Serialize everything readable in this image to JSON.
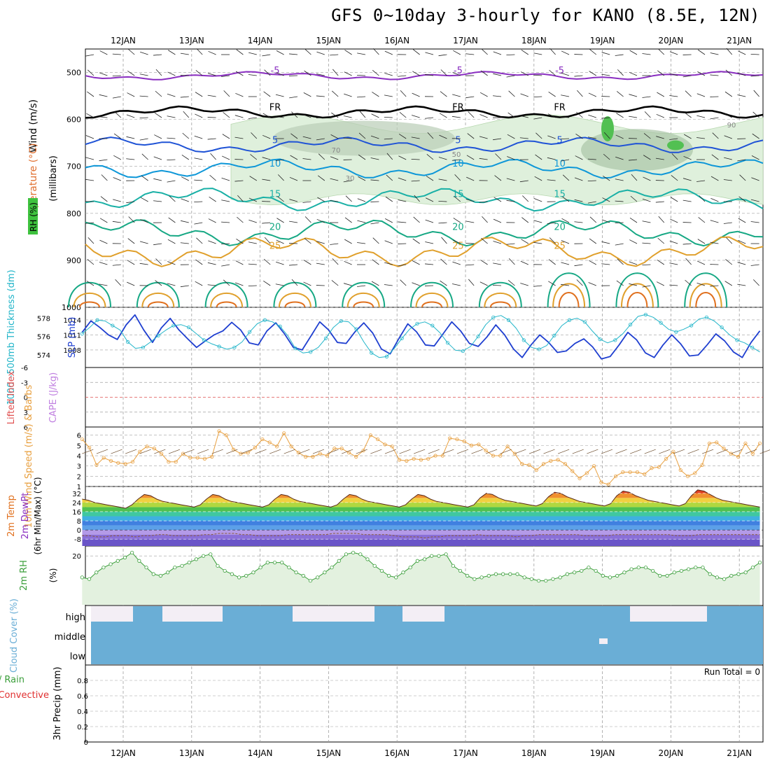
{
  "title": "GFS 0~10day 3-hourly for KANO (8.5E, 12N)",
  "dates": [
    "12JAN",
    "13JAN",
    "14JAN",
    "15JAN",
    "16JAN",
    "17JAN",
    "18JAN",
    "19JAN",
    "20JAN",
    "21JAN"
  ],
  "colors": {
    "grid": "#a0a0a0",
    "temp_minus5": "#8a2fc1",
    "temp_fr": "#000000",
    "temp_5": "#1f53d6",
    "temp_10": "#0e97d8",
    "temp_15": "#19b0a6",
    "temp_20": "#16a884",
    "temp_25": "#e0a02c",
    "temp_30": "#e0701e",
    "temp_35": "#d0136e",
    "rh_fill": "#dff0dc",
    "thickness": "#22b5c9",
    "slp": "#1f3fd0",
    "wind10m": "#e8a040",
    "rh2m": "#3a9e3a",
    "cloud": "#6aaed6",
    "lifted_zero": "#e05050"
  },
  "chart_data": [
    {
      "type": "line",
      "panel": "upper-air cross section",
      "labels_left": [
        "Temperature (°C)",
        "Wind (m/s)",
        "RH (%)"
      ],
      "ylabel": "(millibars)",
      "y_ticks": [
        500,
        600,
        700,
        800,
        900,
        1000
      ],
      "ylim": [
        450,
        1000
      ],
      "x_start": "11.6JAN",
      "x_end": "21.3JAN",
      "isotherm_labels": [
        "-5",
        "FR",
        "5",
        "10",
        "15",
        "20",
        "25"
      ],
      "rh_labels": [
        "30",
        "50",
        "70",
        "90"
      ],
      "series": [
        {
          "name": "-5",
          "pressure_mb_mean": 507
        },
        {
          "name": "FR",
          "pressure_mb_mean": 585
        },
        {
          "name": "5",
          "pressure_mb_mean": 655
        },
        {
          "name": "10",
          "pressure_mb_mean": 705
        },
        {
          "name": "15",
          "pressure_mb_mean": 770
        },
        {
          "name": "20",
          "pressure_mb_mean": 840
        },
        {
          "name": "25",
          "pressure_mb_mean": 880
        }
      ]
    },
    {
      "type": "line",
      "panel": "thickness and SLP",
      "ylabel_left": "1000−500mb Thickness (dm)",
      "ylabel_right": "SLP (mb)",
      "left_ticks": [
        574,
        576,
        578
      ],
      "right_ticks": [
        1008,
        1011,
        1014
      ],
      "series": [
        {
          "name": "SLP",
          "values": [
            1011.5,
            1013.8,
            1012.5,
            1011.0,
            1010.1,
            1013.0,
            1015.0,
            1012.0,
            1009.5,
            1012.4,
            1014.3,
            1012.0,
            1010.2,
            1008.5,
            1009.8,
            1011.0,
            1011.8,
            1013.5,
            1012.0,
            1009.4,
            1009.0,
            1011.8,
            1013.4,
            1011.2,
            1008.5,
            1008.0,
            1010.8,
            1013.6,
            1012.0,
            1009.5,
            1009.3,
            1011.6,
            1013.4,
            1011.4,
            1008.2,
            1007.2,
            1010.3,
            1013.2,
            1011.6,
            1009.0,
            1008.8,
            1011.2,
            1013.6,
            1011.8,
            1009.3,
            1008.7,
            1010.6,
            1013.0,
            1011.0,
            1008.2,
            1006.5,
            1009.0,
            1011.0,
            1009.5,
            1007.5,
            1007.8,
            1009.3,
            1010.2,
            1008.6,
            1006.2,
            1006.7,
            1009.0,
            1011.5,
            1010.0,
            1007.4,
            1006.5,
            1009.0,
            1011.0,
            1009.2,
            1006.8,
            1007.0,
            1009.0,
            1011.2,
            1009.8,
            1007.6,
            1006.5,
            1009.5,
            1011.8
          ]
        },
        {
          "name": "Thickness",
          "values": [
            576.3,
            577.0,
            577.8,
            577.7,
            577.2,
            576.7,
            575.4,
            574.7,
            574.8,
            575.4,
            576.1,
            576.7,
            577.2,
            577.3,
            577.0,
            576.3,
            575.6,
            575.2,
            574.9,
            574.6,
            574.8,
            575.4,
            576.5,
            577.4,
            577.8,
            577.6,
            577.1,
            576.1,
            574.7,
            574.2,
            574.3,
            574.8,
            575.8,
            577.0,
            577.7,
            577.6,
            576.8,
            575.4,
            574.2,
            573.7,
            573.8,
            574.7,
            575.8,
            576.8,
            577.4,
            577.6,
            577.2,
            576.4,
            575.3,
            574.5,
            574.4,
            574.9,
            576.0,
            577.3,
            578.1,
            578.3,
            577.8,
            576.9,
            575.6,
            574.8,
            574.6,
            575.0,
            576.1,
            577.2,
            577.8,
            578.0,
            577.6,
            576.6,
            575.7,
            575.3,
            575.6,
            576.3,
            577.3,
            578.2,
            578.4,
            578.1,
            577.5,
            576.8,
            576.5,
            576.8,
            577.2,
            577.9,
            578.1,
            577.7,
            577.0,
            576.2,
            575.6,
            575.3,
            574.8,
            574.3
          ]
        }
      ]
    },
    {
      "type": "line",
      "panel": "lifted index and CAPE",
      "ylabel_left": "Lifted Index",
      "ylabel_right": "CAPE (J/kg)",
      "y_ticks": [
        "-6",
        "-3",
        "0",
        "3",
        "6"
      ],
      "series": []
    },
    {
      "type": "line",
      "panel": "10m wind",
      "ylabel": "10m Wind Speed (m/s) & Barbs",
      "y_ticks": [
        1,
        2,
        3,
        4,
        5,
        6
      ],
      "ylim": [
        1,
        6.8
      ],
      "series": [
        {
          "name": "10m Wind Speed",
          "values": [
            5.6,
            4.8,
            3.1,
            3.8,
            3.5,
            3.3,
            3.2,
            3.4,
            4.4,
            4.9,
            4.7,
            4.2,
            3.4,
            3.4,
            4.2,
            3.8,
            3.8,
            3.7,
            3.9,
            6.4,
            6.0,
            4.6,
            4.2,
            4.3,
            4.8,
            5.6,
            5.3,
            4.9,
            6.2,
            4.9,
            4.3,
            3.9,
            3.9,
            4.2,
            4.0,
            4.7,
            4.7,
            4.3,
            3.9,
            4.5,
            6.0,
            5.6,
            5.1,
            4.9,
            3.6,
            3.5,
            3.7,
            3.6,
            3.7,
            4.0,
            4.0,
            5.7,
            5.6,
            5.4,
            5.0,
            5.1,
            4.5,
            4.0,
            4.0,
            4.9,
            4.2,
            3.2,
            3.1,
            2.6,
            3.2,
            3.5,
            3.6,
            3.2,
            2.5,
            1.8,
            2.3,
            3.0,
            1.4,
            1.2,
            2.0,
            2.4,
            2.4,
            2.4,
            2.2,
            2.8,
            2.9,
            3.7,
            4.4,
            2.6,
            2.0,
            2.3,
            3.1,
            5.2,
            5.3,
            4.7,
            4.2,
            3.9,
            5.2,
            4.2,
            5.2
          ]
        }
      ]
    },
    {
      "type": "area",
      "panel": "2m temperature",
      "ylabel": "2m Temp 2m DewPt (6hr Min/Max) (°C)",
      "y_ticks": [
        -8,
        0,
        8,
        16,
        24,
        32
      ],
      "ylim": [
        -14,
        38
      ],
      "series": [
        {
          "name": "2m Temp",
          "values": [
            27,
            26,
            24,
            23,
            22,
            21,
            20,
            19,
            22,
            27,
            31,
            30,
            27,
            25,
            24,
            23,
            22,
            21,
            20,
            22,
            27,
            31,
            30,
            27,
            25,
            24,
            23,
            22,
            21,
            20,
            22,
            27,
            31,
            30,
            27,
            25,
            24,
            23,
            22,
            21,
            20,
            22,
            27,
            31,
            30,
            27,
            25,
            24,
            23,
            22,
            21,
            20,
            22,
            27,
            31,
            30,
            27,
            25,
            24,
            23,
            22,
            21,
            20,
            22,
            28,
            32,
            31,
            28,
            26,
            25,
            24,
            23,
            22,
            21,
            23,
            29,
            33,
            32,
            29,
            27,
            25,
            24,
            23,
            22,
            21,
            23,
            30,
            34,
            33,
            30,
            28,
            26,
            25,
            24,
            23,
            22,
            21,
            23,
            30,
            35,
            34,
            31,
            28,
            26,
            25,
            24,
            23,
            22,
            21,
            20
          ]
        },
        {
          "name": "2m DewPt",
          "values": [
            -5,
            -5,
            -6,
            -6,
            -5,
            -5,
            -5,
            -6,
            -5,
            -5,
            -4,
            -4,
            -5,
            -5,
            -5,
            -5,
            -4,
            -4,
            -3,
            -3,
            -3,
            -4,
            -4,
            -5,
            -5,
            -5,
            -5,
            -4,
            -4,
            -4,
            -4,
            -4,
            -4,
            -3,
            -3,
            -3,
            -3,
            -4,
            -4,
            -4,
            -4,
            -5,
            -6,
            -6,
            -6,
            -7,
            -6,
            -6,
            -5,
            -5,
            -5,
            -5,
            -4,
            -5,
            -5,
            -5,
            -5,
            -6,
            -5,
            -5,
            -4,
            -4,
            -4,
            -4,
            -4,
            -4,
            -5,
            -5,
            -5,
            -5,
            -4,
            -4,
            -4,
            -4,
            -4,
            -4,
            -4,
            -4,
            -5,
            -5,
            -5,
            -4,
            -4,
            -4,
            -4,
            -4,
            -4,
            -4,
            -4,
            -4
          ]
        }
      ]
    },
    {
      "type": "area",
      "panel": "2m RH",
      "ylabel": "2m RH (%)",
      "y_ticks": [
        20
      ],
      "ylim": [
        -10,
        26
      ],
      "series": [
        {
          "name": "2m RH",
          "values": [
            7,
            6,
            10,
            13,
            15,
            17,
            19,
            22,
            17,
            13,
            9,
            8,
            10,
            13,
            14,
            16,
            18,
            20,
            21,
            14,
            11,
            9,
            7,
            8,
            10,
            13,
            16,
            16,
            16,
            13,
            10,
            8,
            5,
            7,
            10,
            13,
            17,
            21,
            22,
            21,
            18,
            14,
            11,
            8,
            7,
            10,
            13,
            17,
            18,
            20,
            20,
            21,
            14,
            11,
            8,
            6,
            7,
            8,
            9,
            9,
            9,
            9,
            7,
            6,
            5,
            5,
            6,
            7,
            9,
            10,
            11,
            13,
            11,
            8,
            7,
            8,
            10,
            12,
            13,
            13,
            11,
            8,
            8,
            10,
            11,
            12,
            13,
            13,
            9,
            7,
            6,
            8,
            9,
            10,
            13,
            16
          ]
        }
      ]
    },
    {
      "type": "area",
      "panel": "cloud cover",
      "ylabel": "Cloud Cover (%)",
      "levels": [
        "high",
        "middle",
        "low"
      ]
    },
    {
      "type": "bar",
      "panel": "3hr precip",
      "ylabel": "3hr Precip (mm)",
      "labels_left": [
        "Total / Rain",
        "Convective"
      ],
      "y_ticks": [
        "0",
        "0.2",
        "0.4",
        "0.6",
        "0.8"
      ],
      "ylim": [
        0,
        1
      ],
      "annotation": "Run Total = 0",
      "series": []
    }
  ]
}
